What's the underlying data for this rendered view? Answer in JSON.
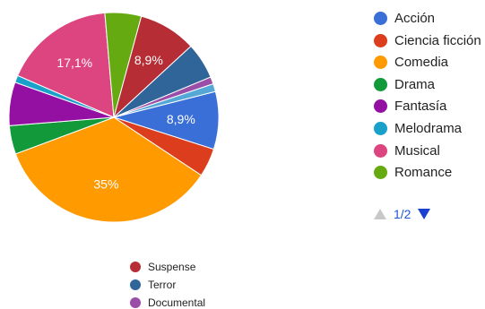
{
  "chart_data": {
    "type": "pie",
    "title": "",
    "slices": [
      {
        "name": "Acción",
        "value": 8.9,
        "label": "8,9%",
        "color": "#3a6fd8"
      },
      {
        "name": "Ciencia ficción",
        "value": 4.4,
        "label": "",
        "color": "#dc3d1c"
      },
      {
        "name": "Comedia",
        "value": 35,
        "label": "35%",
        "color": "#ff9a00"
      },
      {
        "name": "Drama",
        "value": 4.4,
        "label": "",
        "color": "#129a3a"
      },
      {
        "name": "Fantasía",
        "value": 6.7,
        "label": "",
        "color": "#9410a3"
      },
      {
        "name": "Melodrama",
        "value": 1.1,
        "label": "",
        "color": "#1aa1c9"
      },
      {
        "name": "Musical",
        "value": 17.1,
        "label": "17,1%",
        "color": "#dd4580"
      },
      {
        "name": "Romance",
        "value": 5.6,
        "label": "",
        "color": "#66aa11"
      },
      {
        "name": "Suspense",
        "value": 8.9,
        "label": "8,9%",
        "color": "#b72d35"
      },
      {
        "name": "Terror",
        "value": 5.6,
        "label": "",
        "color": "#306599"
      },
      {
        "name": "Documental",
        "value": 1.1,
        "label": "",
        "color": "#9b4ea8"
      },
      {
        "name": "",
        "value": 1.2,
        "label": "",
        "color": "#54a8d6"
      }
    ],
    "legend_right": [
      "Acción",
      "Ciencia ficción",
      "Comedia",
      "Drama",
      "Fantasía",
      "Melodrama",
      "Musical",
      "Romance"
    ],
    "legend_bottom": [
      "Suspense",
      "Terror",
      "Documental"
    ],
    "legend_placement": "right"
  },
  "pager": {
    "label": "1/2"
  }
}
